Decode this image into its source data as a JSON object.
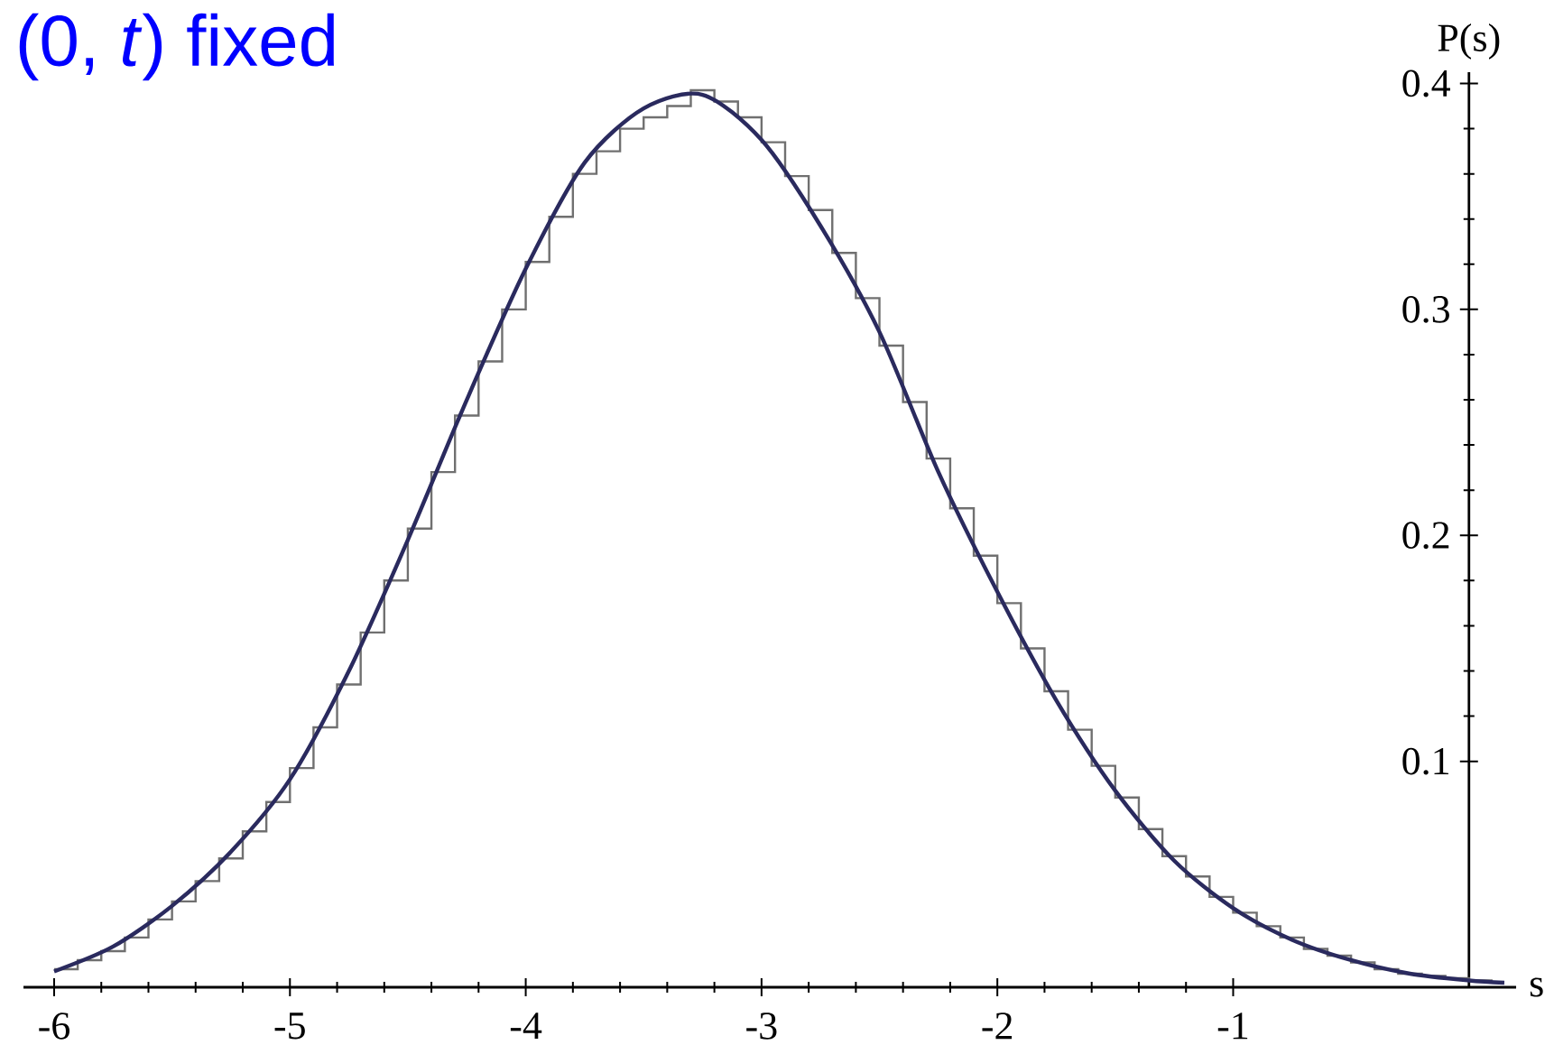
{
  "chart_data": {
    "type": "line",
    "title": "(0, *t*) fixed",
    "xlabel": "s",
    "ylabel": "P(s)",
    "xlim": [
      -6.13,
      0.2
    ],
    "ylim": [
      0,
      0.405
    ],
    "xticks": [
      -6,
      -5,
      -4,
      -3,
      -2,
      -1
    ],
    "yticks": [
      0.1,
      0.2,
      0.3,
      0.4
    ],
    "series": [
      {
        "type": "histogram",
        "color": "#707070",
        "bins": [
          -6.0,
          -5.9,
          -5.8,
          -5.7,
          -5.6,
          -5.5,
          -5.4,
          -5.3,
          -5.2,
          -5.1,
          -5.0,
          -4.9,
          -4.8,
          -4.7,
          -4.6,
          -4.5,
          -4.4,
          -4.3,
          -4.2,
          -4.1,
          -4.0,
          -3.9,
          -3.8,
          -3.7,
          -3.6,
          -3.5,
          -3.4,
          -3.3,
          -3.2,
          -3.1,
          -3.0,
          -2.9,
          -2.8,
          -2.7,
          -2.6,
          -2.5,
          -2.4,
          -2.3,
          -2.2,
          -2.1,
          -2.0,
          -1.9,
          -1.8,
          -1.7,
          -1.6,
          -1.5,
          -1.4,
          -1.3,
          -1.2,
          -1.1,
          -1.0,
          -0.9,
          -0.8,
          -0.7,
          -0.6,
          -0.5,
          -0.4,
          -0.3,
          -0.2,
          -0.1,
          0.0,
          0.1
        ],
        "values": [
          0.008,
          0.012,
          0.016,
          0.022,
          0.03,
          0.038,
          0.047,
          0.057,
          0.069,
          0.082,
          0.097,
          0.115,
          0.134,
          0.157,
          0.18,
          0.203,
          0.228,
          0.253,
          0.277,
          0.3,
          0.321,
          0.341,
          0.36,
          0.37,
          0.38,
          0.385,
          0.39,
          0.397,
          0.392,
          0.385,
          0.374,
          0.359,
          0.344,
          0.325,
          0.305,
          0.284,
          0.259,
          0.234,
          0.212,
          0.191,
          0.17,
          0.15,
          0.131,
          0.114,
          0.098,
          0.084,
          0.07,
          0.058,
          0.049,
          0.04,
          0.033,
          0.027,
          0.022,
          0.017,
          0.014,
          0.011,
          0.008,
          0.006,
          0.005,
          0.004,
          0.003
        ]
      },
      {
        "color": "#2a2a5e",
        "x": [
          -6.0,
          -5.75,
          -5.5,
          -5.25,
          -5.0,
          -4.75,
          -4.5,
          -4.25,
          -4.0,
          -3.75,
          -3.5,
          -3.25,
          -3.0,
          -2.75,
          -2.5,
          -2.25,
          -2.0,
          -1.75,
          -1.5,
          -1.25,
          -1.0,
          -0.75,
          -0.5,
          -0.25,
          0.0,
          0.15
        ],
        "values": [
          0.007,
          0.018,
          0.036,
          0.06,
          0.092,
          0.14,
          0.198,
          0.26,
          0.318,
          0.365,
          0.389,
          0.395,
          0.375,
          0.337,
          0.29,
          0.228,
          0.175,
          0.127,
          0.087,
          0.056,
          0.035,
          0.021,
          0.012,
          0.006,
          0.003,
          0.002
        ]
      }
    ]
  }
}
